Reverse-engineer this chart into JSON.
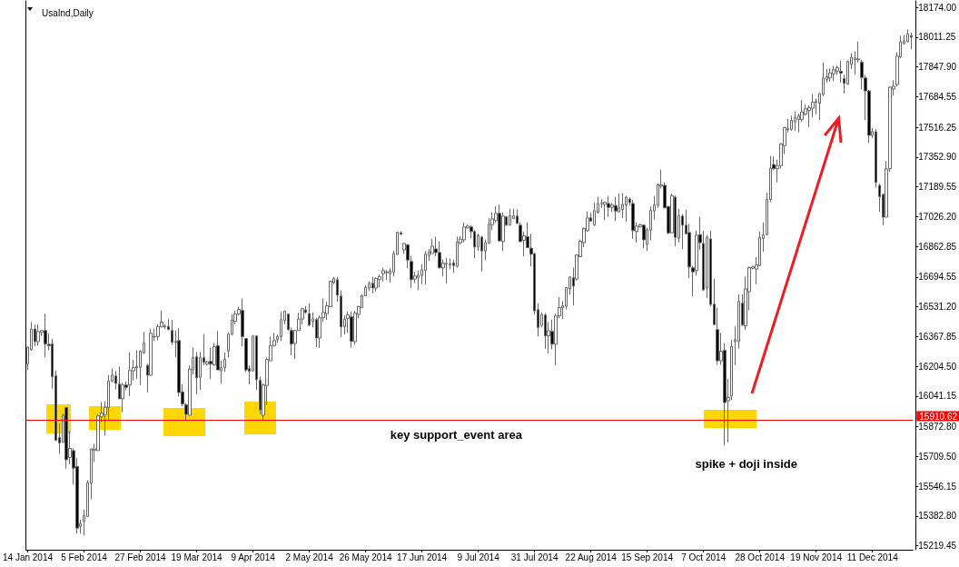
{
  "chart_data": {
    "type": "candlestick",
    "title": "UsaInd,Daily",
    "categories": [
      "14 Jan 2014",
      null,
      null,
      null,
      null,
      null,
      null,
      null,
      null,
      null,
      null,
      null,
      null,
      null,
      null,
      null,
      "5 Feb 2014",
      null,
      null,
      null,
      null,
      null,
      null,
      null,
      null,
      null,
      null,
      null,
      null,
      null,
      null,
      null,
      "27 Feb 2014",
      null,
      null,
      null,
      null,
      null,
      null,
      null,
      null,
      null,
      null,
      null,
      null,
      null,
      null,
      null,
      "19 Mar 2014",
      null,
      null,
      null,
      null,
      null,
      null,
      null,
      null,
      null,
      null,
      null,
      null,
      null,
      null,
      null,
      "9 Apr 2014",
      null,
      null,
      null,
      null,
      null,
      null,
      null,
      null,
      null,
      null,
      null,
      null,
      null,
      null,
      null,
      "2 May 2014",
      null,
      null,
      null,
      null,
      null,
      null,
      null,
      null,
      null,
      null,
      null,
      null,
      null,
      null,
      null,
      "26 May 2014",
      null,
      null,
      null,
      null,
      null,
      null,
      null,
      null,
      null,
      null,
      null,
      null,
      null,
      null,
      null,
      "17 Jun 2014",
      null,
      null,
      null,
      null,
      null,
      null,
      null,
      null,
      null,
      null,
      null,
      null,
      null,
      null,
      null,
      "9 Jul 2014",
      null,
      null,
      null,
      null,
      null,
      null,
      null,
      null,
      null,
      null,
      null,
      null,
      null,
      null,
      null,
      "31 Jul 2014",
      null,
      null,
      null,
      null,
      null,
      null,
      null,
      null,
      null,
      null,
      null,
      null,
      null,
      null,
      null,
      "22 Aug 2014",
      null,
      null,
      null,
      null,
      null,
      null,
      null,
      null,
      null,
      null,
      null,
      null,
      null,
      null,
      null,
      "15 Sep 2014",
      null,
      null,
      null,
      null,
      null,
      null,
      null,
      null,
      null,
      null,
      null,
      null,
      null,
      null,
      null,
      "7 Oct 2014",
      null,
      null,
      null,
      null,
      null,
      null,
      null,
      null,
      null,
      null,
      null,
      null,
      null,
      null,
      null,
      "28 Oct 2014",
      null,
      null,
      null,
      null,
      null,
      null,
      null,
      null,
      null,
      null,
      null,
      null,
      null,
      null,
      null,
      "19 Nov 2014",
      null,
      null,
      null,
      null,
      null,
      null,
      null,
      null,
      null,
      null,
      null,
      null,
      null,
      null,
      null,
      "11 Dec 2014",
      null,
      null,
      null,
      null,
      null,
      null,
      null,
      null,
      null,
      null,
      null
    ],
    "ohlc": [
      [
        16219,
        16313,
        16185,
        16310
      ],
      [
        16297,
        16448,
        16290,
        16410
      ],
      [
        16410,
        16433,
        16315,
        16340
      ],
      [
        16340,
        16436,
        16318,
        16396
      ],
      [
        16390,
        16405,
        16371,
        16401
      ],
      [
        16401,
        16493,
        16255,
        16327
      ],
      [
        16325,
        16385,
        16293,
        16317
      ],
      [
        16327,
        16356,
        16083,
        16147
      ],
      [
        16152,
        16182,
        15795,
        15799
      ],
      [
        15814,
        15890,
        15724,
        15784
      ],
      [
        15787,
        15945,
        15787,
        15936
      ],
      [
        15978,
        15981,
        15643,
        15692
      ],
      [
        15704,
        15850,
        15668,
        15754
      ],
      [
        15742,
        15755,
        15555,
        15646
      ],
      [
        15654,
        15701,
        15286,
        15317
      ],
      [
        15326,
        15364,
        15286,
        15342
      ],
      [
        15355,
        15417,
        15276,
        15385
      ],
      [
        15380,
        15580,
        15380,
        15566
      ],
      [
        15563,
        15754,
        15475,
        15751
      ],
      [
        15744,
        15779,
        15679,
        15752
      ],
      [
        15742,
        15945,
        15742,
        15933
      ],
      [
        15927,
        16009,
        15900,
        15948
      ],
      [
        15940,
        16013,
        15824,
        15980
      ],
      [
        15978,
        16157,
        15912,
        16124
      ],
      [
        16122,
        16194,
        16119,
        16157
      ],
      [
        16152,
        16179,
        16078,
        16111
      ],
      [
        16107,
        16204,
        16026,
        16026
      ],
      [
        16026,
        16114,
        15953,
        16102
      ],
      [
        16102,
        16122,
        16073,
        16089
      ],
      [
        16102,
        16282,
        16041,
        16182
      ],
      [
        16180,
        16238,
        16127,
        16197
      ],
      [
        16197,
        16292,
        16136,
        16204
      ],
      [
        16199,
        16293,
        16102,
        16288
      ],
      [
        16277,
        16393,
        16277,
        16332
      ],
      [
        16209,
        16219,
        16061,
        16156
      ],
      [
        16156,
        16411,
        16152,
        16386
      ],
      [
        16365,
        16410,
        16343,
        16368
      ],
      [
        16368,
        16434,
        16348,
        16423
      ],
      [
        16421,
        16512,
        16418,
        16448
      ],
      [
        16421,
        16434,
        16410,
        16426
      ],
      [
        16423,
        16463,
        16405,
        16406
      ],
      [
        16401,
        16459,
        16322,
        16337
      ],
      [
        16341,
        16401,
        16255,
        16336
      ],
      [
        16346,
        16413,
        16039,
        16061
      ],
      [
        16064,
        16106,
        15986,
        15998
      ],
      [
        15993,
        16003,
        15912,
        15941
      ],
      [
        15936,
        16209,
        15936,
        16189
      ],
      [
        16185,
        16308,
        16159,
        16252
      ],
      [
        16257,
        16283,
        16051,
        16141
      ],
      [
        16144,
        16283,
        16076,
        16252
      ],
      [
        16252,
        16381,
        16210,
        16227
      ],
      [
        16217,
        16235,
        16209,
        16230
      ],
      [
        16232,
        16307,
        16136,
        16217
      ],
      [
        16212,
        16332,
        16207,
        16312
      ],
      [
        16318,
        16398,
        16185,
        16185
      ],
      [
        16180,
        16235,
        16111,
        16197
      ],
      [
        16197,
        16280,
        16175,
        16242
      ],
      [
        16288,
        16391,
        16252,
        16381
      ],
      [
        16380,
        16491,
        16376,
        16458
      ],
      [
        16451,
        16509,
        16434,
        16491
      ],
      [
        16491,
        16532,
        16484,
        16517
      ],
      [
        16511,
        16577,
        16315,
        16368
      ],
      [
        16357,
        16357,
        16172,
        16185
      ],
      [
        16192,
        16210,
        16106,
        16177
      ],
      [
        16179,
        16375,
        16176,
        16371
      ],
      [
        16371,
        16375,
        16076,
        16132
      ],
      [
        16127,
        16147,
        15941,
        15966
      ],
      [
        15936,
        16111,
        15912,
        16102
      ],
      [
        16099,
        16252,
        15991,
        16242
      ],
      [
        16235,
        16368,
        16235,
        16318
      ],
      [
        16318,
        16388,
        16313,
        16346
      ],
      [
        16351,
        16381,
        16335,
        16368
      ],
      [
        16368,
        16503,
        16343,
        16461
      ],
      [
        16456,
        16508,
        16434,
        16508
      ],
      [
        16491,
        16494,
        16401,
        16406
      ],
      [
        16401,
        16418,
        16265,
        16327
      ],
      [
        16330,
        16403,
        16245,
        16401
      ],
      [
        16401,
        16498,
        16401,
        16464
      ],
      [
        16464,
        16526,
        16434,
        16521
      ],
      [
        16514,
        16534,
        16493,
        16501
      ],
      [
        16494,
        16551,
        16424,
        16431
      ],
      [
        16451,
        16501,
        16418,
        16466
      ],
      [
        16461,
        16471,
        16310,
        16360
      ],
      [
        16360,
        16484,
        16305,
        16471
      ],
      [
        16471,
        16577,
        16448,
        16501
      ],
      [
        16494,
        16559,
        16459,
        16537
      ],
      [
        16531,
        16672,
        16531,
        16672
      ],
      [
        16664,
        16695,
        16655,
        16687
      ],
      [
        16680,
        16695,
        16559,
        16595
      ],
      [
        16590,
        16622,
        16365,
        16421
      ],
      [
        16421,
        16484,
        16380,
        16463
      ],
      [
        16468,
        16504,
        16390,
        16488
      ],
      [
        16476,
        16506,
        16310,
        16341
      ],
      [
        16340,
        16509,
        16323,
        16496
      ],
      [
        16489,
        16537,
        16468,
        16532
      ],
      [
        16526,
        16600,
        16526,
        16594
      ],
      [
        16592,
        16650,
        16592,
        16637
      ],
      [
        16634,
        16672,
        16617,
        16660
      ],
      [
        16660,
        16695,
        16605,
        16634
      ],
      [
        16634,
        16692,
        16615,
        16687
      ],
      [
        16680,
        16708,
        16637,
        16697
      ],
      [
        16713,
        16745,
        16670,
        16730
      ],
      [
        16720,
        16733,
        16678,
        16722
      ],
      [
        16713,
        16742,
        16664,
        16728
      ],
      [
        16720,
        16839,
        16697,
        16824
      ],
      [
        16818,
        16941,
        16818,
        16941
      ],
      [
        16937,
        16946,
        16927,
        16929
      ],
      [
        16844,
        16883,
        16821,
        16879
      ],
      [
        16871,
        16876,
        16743,
        16788
      ],
      [
        16780,
        16811,
        16634,
        16680
      ],
      [
        16683,
        16723,
        16662,
        16700
      ],
      [
        16693,
        16730,
        16622,
        16705
      ],
      [
        16703,
        16766,
        16655,
        16735
      ],
      [
        16730,
        16838,
        16653,
        16820
      ],
      [
        16813,
        16849,
        16783,
        16833
      ],
      [
        16823,
        16903,
        16823,
        16864
      ],
      [
        16849,
        16916,
        16808,
        16829
      ],
      [
        16829,
        16891,
        16742,
        16745
      ],
      [
        16745,
        16791,
        16698,
        16771
      ],
      [
        16766,
        16800,
        16659,
        16770
      ],
      [
        16766,
        16796,
        16737,
        16763
      ],
      [
        16771,
        16791,
        16717,
        16758
      ],
      [
        16753,
        16916,
        16746,
        16886
      ],
      [
        16883,
        16919,
        16874,
        16903
      ],
      [
        16899,
        16995,
        16886,
        16969
      ],
      [
        16964,
        16982,
        16961,
        16974
      ],
      [
        16969,
        16979,
        16908,
        16944
      ],
      [
        16944,
        16952,
        16798,
        16859
      ],
      [
        16859,
        16932,
        16838,
        16921
      ],
      [
        16914,
        16921,
        16725,
        16838
      ],
      [
        16838,
        16901,
        16788,
        16884
      ],
      [
        16879,
        17019,
        16879,
        16984
      ],
      [
        16982,
        17050,
        16952,
        17014
      ],
      [
        17004,
        17082,
        16991,
        17044
      ],
      [
        17044,
        17090,
        16888,
        16893
      ],
      [
        16889,
        17049,
        16838,
        17029
      ],
      [
        17025,
        17030,
        16976,
        16979
      ],
      [
        16979,
        17069,
        16979,
        17032
      ],
      [
        17015,
        17069,
        17015,
        17032
      ],
      [
        17029,
        17065,
        16986,
        16989
      ],
      [
        16979,
        16995,
        16888,
        16889
      ],
      [
        16896,
        16944,
        16808,
        16921
      ],
      [
        16916,
        16995,
        16854,
        16856
      ],
      [
        16853,
        16932,
        16753,
        16820
      ],
      [
        16823,
        16826,
        16489,
        16509
      ],
      [
        16516,
        16551,
        16368,
        16418
      ],
      [
        16429,
        16501,
        16418,
        16489
      ],
      [
        16486,
        16497,
        16300,
        16371
      ],
      [
        16371,
        16448,
        16275,
        16400
      ],
      [
        16396,
        16461,
        16298,
        16326
      ],
      [
        16326,
        16492,
        16210,
        16481
      ],
      [
        16481,
        16584,
        16468,
        16527
      ],
      [
        16526,
        16562,
        16463,
        16537
      ],
      [
        16534,
        16637,
        16517,
        16637
      ],
      [
        16630,
        16700,
        16597,
        16695
      ],
      [
        16690,
        16746,
        16539,
        16645
      ],
      [
        16683,
        16816,
        16675,
        16816
      ],
      [
        16806,
        16901,
        16803,
        16891
      ],
      [
        16883,
        16966,
        16858,
        16961
      ],
      [
        16949,
        17054,
        16944,
        17019
      ],
      [
        17019,
        17049,
        16999,
        17002
      ],
      [
        16979,
        17103,
        16977,
        17059
      ],
      [
        17049,
        17135,
        17044,
        17098
      ],
      [
        17097,
        17122,
        17074,
        17100
      ],
      [
        17093,
        17108,
        17007,
        17105
      ],
      [
        17098,
        17140,
        17024,
        17077
      ],
      [
        17077,
        17102,
        17052,
        17090
      ],
      [
        17087,
        17135,
        17002,
        17057
      ],
      [
        17052,
        17153,
        17049,
        17074
      ],
      [
        17065,
        17155,
        17019,
        17093
      ],
      [
        17090,
        17140,
        16999,
        17133
      ],
      [
        17123,
        17132,
        17087,
        17103
      ],
      [
        17098,
        17118,
        16904,
        16949
      ],
      [
        16944,
        16995,
        16883,
        16974
      ],
      [
        16969,
        16987,
        16966,
        16981
      ],
      [
        16979,
        16982,
        16853,
        16899
      ],
      [
        16873,
        16966,
        16838,
        16954
      ],
      [
        16952,
        17082,
        16896,
        17060
      ],
      [
        17057,
        17140,
        17009,
        17090
      ],
      [
        17088,
        17208,
        17074,
        17203
      ],
      [
        17193,
        17284,
        17180,
        17200
      ],
      [
        17198,
        17215,
        17074,
        17074
      ],
      [
        17082,
        17085,
        16929,
        16937
      ],
      [
        16937,
        17152,
        16936,
        17140
      ],
      [
        17133,
        17143,
        16863,
        16912
      ],
      [
        16908,
        17069,
        16883,
        17032
      ],
      [
        17029,
        17040,
        16848,
        16979
      ],
      [
        16979,
        17064,
        16929,
        16932
      ],
      [
        16939,
        16986,
        16688,
        16750
      ],
      [
        16745,
        16755,
        16589,
        16723
      ],
      [
        16730,
        16949,
        16703,
        16924
      ],
      [
        16927,
        17024,
        16844,
        16883
      ],
      [
        16879,
        16949,
        16617,
        16624
      ],
      [
        16634,
        16924,
        16579,
        16914
      ],
      [
        16904,
        16949,
        16534,
        16544
      ],
      [
        16546,
        16685,
        16429,
        16434
      ],
      [
        16406,
        16527,
        16214,
        16235
      ],
      [
        16235,
        16388,
        16214,
        16288
      ],
      [
        16292,
        16331,
        15770,
        16006
      ],
      [
        16016,
        16136,
        15787,
        16033
      ],
      [
        16041,
        16351,
        16019,
        16313
      ],
      [
        16340,
        16423,
        16210,
        16351
      ],
      [
        16340,
        16600,
        16302,
        16561
      ],
      [
        16551,
        16600,
        16426,
        16431
      ],
      [
        16426,
        16697,
        16405,
        16630
      ],
      [
        16614,
        16753,
        16512,
        16746
      ],
      [
        16743,
        16756,
        16737,
        16750
      ],
      [
        16738,
        16804,
        16655,
        16761
      ],
      [
        16758,
        16944,
        16755,
        16911
      ],
      [
        16907,
        16994,
        16833,
        16927
      ],
      [
        16927,
        17156,
        16924,
        17120
      ],
      [
        17120,
        17359,
        17106,
        17292
      ],
      [
        17312,
        17356,
        17281,
        17289
      ],
      [
        17289,
        17339,
        17214,
        17306
      ],
      [
        17306,
        17430,
        17289,
        17425
      ],
      [
        17415,
        17518,
        17369,
        17515
      ],
      [
        17503,
        17563,
        17488,
        17508
      ],
      [
        17505,
        17580,
        17497,
        17555
      ],
      [
        17546,
        17604,
        17497,
        17571
      ],
      [
        17558,
        17591,
        17488,
        17580
      ],
      [
        17558,
        17666,
        17546,
        17601
      ],
      [
        17588,
        17643,
        17580,
        17618
      ],
      [
        17608,
        17638,
        17518,
        17624
      ],
      [
        17621,
        17699,
        17571,
        17654
      ],
      [
        17653,
        17674,
        17588,
        17658
      ],
      [
        17649,
        17704,
        17558,
        17701
      ],
      [
        17696,
        17873,
        17687,
        17787
      ],
      [
        17779,
        17837,
        17762,
        17794
      ],
      [
        17787,
        17840,
        17767,
        17815
      ],
      [
        17810,
        17853,
        17770,
        17832
      ],
      [
        17825,
        17857,
        17804,
        17844
      ],
      [
        17824,
        17883,
        17762,
        17814
      ],
      [
        17784,
        17804,
        17701,
        17757
      ],
      [
        17754,
        17882,
        17754,
        17878
      ],
      [
        17862,
        17923,
        17837,
        17900
      ],
      [
        17887,
        17933,
        17804,
        17897
      ],
      [
        17887,
        17986,
        17873,
        17892
      ],
      [
        17875,
        17887,
        17724,
        17790
      ],
      [
        17787,
        17804,
        17555,
        17716
      ],
      [
        17716,
        17721,
        17430,
        17472
      ],
      [
        17472,
        17513,
        17458,
        17493
      ],
      [
        17492,
        17508,
        17186,
        17214
      ],
      [
        17198,
        17206,
        17053,
        17136
      ],
      [
        17148,
        17153,
        16979,
        17023
      ],
      [
        17023,
        17331,
        17023,
        17289
      ],
      [
        17289,
        17741,
        17272,
        17737
      ],
      [
        17726,
        17774,
        17691,
        17742
      ],
      [
        17751,
        17928,
        17741,
        17907
      ],
      [
        17903,
        18019,
        17895,
        17986
      ],
      [
        17975,
        18023,
        17970,
        17991
      ],
      [
        17986,
        18053,
        17983,
        18028
      ],
      [
        18019,
        18036,
        17945,
        18011
      ]
    ],
    "ylim": [
      15198,
      18210
    ],
    "yticks": [
      15219.45,
      {
        "value": 15382.8,
        "label": "15382.80"
      },
      15546.15,
      {
        "value": 15709.5,
        "label": "15709.50"
      },
      {
        "value": 15872.8,
        "label": "15872.80"
      },
      16041.15,
      {
        "value": 16204.5,
        "label": "16204.50"
      },
      16367.85,
      {
        "value": 16531.2,
        "label": "16531.20"
      },
      16694.55,
      16862.85,
      {
        "value": 17026.2,
        "label": "17026.20"
      },
      17189.55,
      {
        "value": 17352.9,
        "label": "17352.90"
      },
      17516.25,
      17684.55,
      {
        "value": 17847.9,
        "label": "17847.90"
      },
      18011.25,
      {
        "value": 18174,
        "label": "18174.00"
      }
    ],
    "ref_lines": [
      {
        "axis": "y",
        "value": 15910.62,
        "label": "15910.62",
        "color": "#ff0000"
      }
    ],
    "annotations": [
      "key support_event area",
      "spike + doji inside"
    ]
  }
}
